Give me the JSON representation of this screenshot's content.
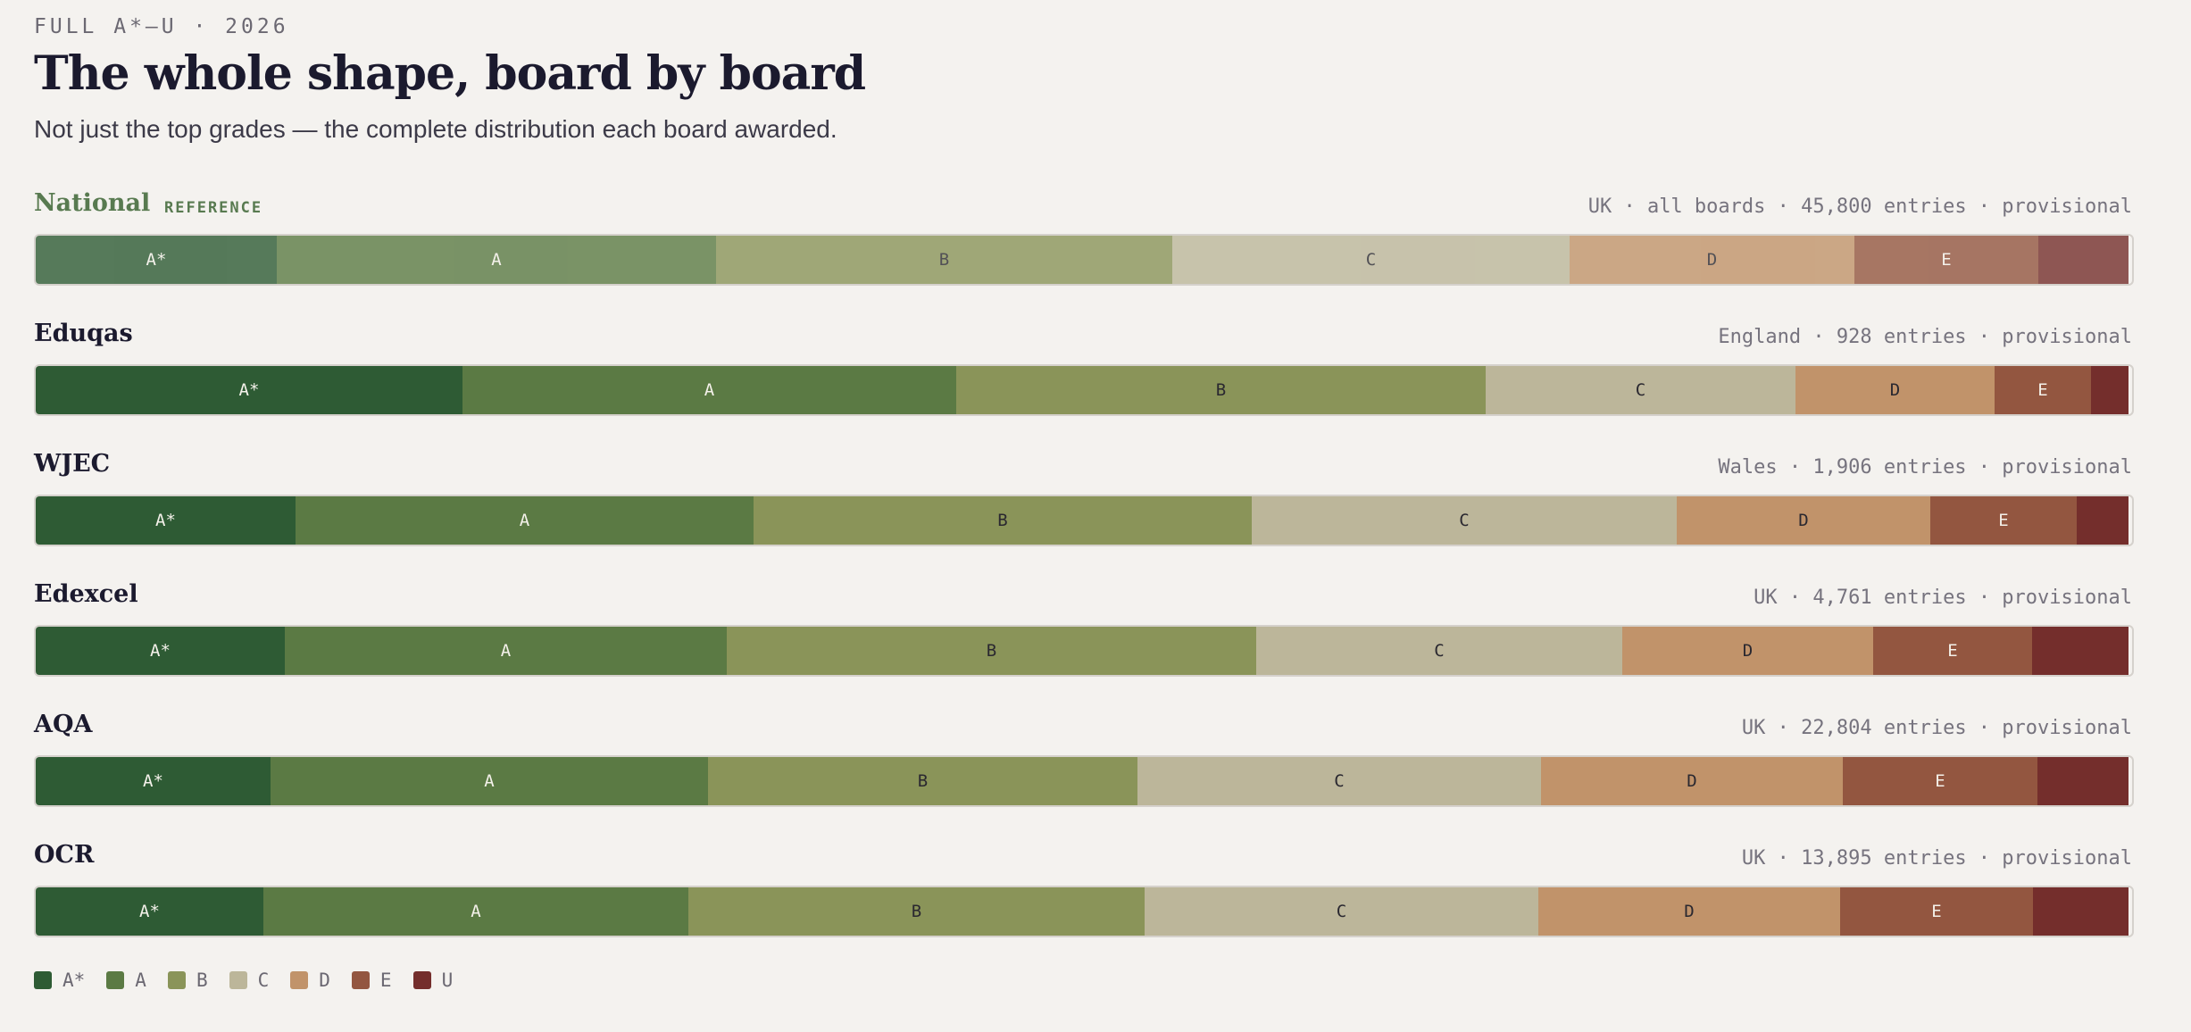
{
  "header": {
    "kicker": "FULL A*–U · 2026",
    "title": "The whole shape, board by board",
    "subtitle": "Not just the top grades — the complete distribution each board awarded."
  },
  "grade_colors": {
    "A*": "#2e5b34",
    "A": "#5b7a44",
    "B": "#8a9459",
    "C": "#bcb69a",
    "D": "#c1936a",
    "E": "#935640",
    "U": "#742e2c"
  },
  "chart_data": {
    "type": "bar",
    "orientation": "horizontal-stacked-100",
    "categories": [
      "A*",
      "A",
      "B",
      "C",
      "D",
      "E",
      "U"
    ],
    "boards": [
      {
        "name": "National",
        "tag": "REFERENCE",
        "reference": true,
        "meta": "UK · all boards · 45,800 entries · provisional",
        "values": [
          11.5,
          21.0,
          21.8,
          19.0,
          13.6,
          8.8,
          4.3
        ]
      },
      {
        "name": "Eduqas",
        "tag": "",
        "reference": false,
        "meta": "England · 928 entries · provisional",
        "values": [
          20.4,
          23.6,
          25.3,
          14.8,
          9.5,
          4.6,
          1.8
        ]
      },
      {
        "name": "WJEC",
        "tag": "",
        "reference": false,
        "meta": "Wales · 1,906 entries · provisional",
        "values": [
          12.4,
          21.9,
          23.8,
          20.3,
          12.1,
          7.0,
          2.5
        ]
      },
      {
        "name": "Edexcel",
        "tag": "",
        "reference": false,
        "meta": "UK · 4,761 entries · provisional",
        "values": [
          11.9,
          21.1,
          25.3,
          17.5,
          12.0,
          7.6,
          4.6
        ]
      },
      {
        "name": "AQA",
        "tag": "",
        "reference": false,
        "meta": "UK · 22,804 entries · provisional",
        "values": [
          11.2,
          20.9,
          20.5,
          19.3,
          14.4,
          9.3,
          4.4
        ]
      },
      {
        "name": "OCR",
        "tag": "",
        "reference": false,
        "meta": "UK · 13,895 entries · provisional",
        "values": [
          10.9,
          20.3,
          21.8,
          18.8,
          14.4,
          9.2,
          4.6
        ]
      }
    ]
  },
  "legend": {
    "items": [
      "A*",
      "A",
      "B",
      "C",
      "D",
      "E",
      "U"
    ]
  }
}
